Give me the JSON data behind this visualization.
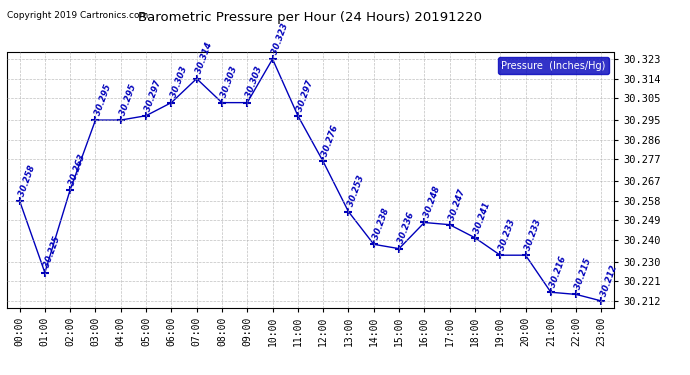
{
  "title": "Barometric Pressure per Hour (24 Hours) 20191220",
  "copyright": "Copyright 2019 Cartronics.com",
  "legend_label": "Pressure  (Inches/Hg)",
  "hours": [
    0,
    1,
    2,
    3,
    4,
    5,
    6,
    7,
    8,
    9,
    10,
    11,
    12,
    13,
    14,
    15,
    16,
    17,
    18,
    19,
    20,
    21,
    22,
    23
  ],
  "hour_labels": [
    "00:00",
    "01:00",
    "02:00",
    "03:00",
    "04:00",
    "05:00",
    "06:00",
    "07:00",
    "08:00",
    "09:00",
    "10:00",
    "11:00",
    "12:00",
    "13:00",
    "14:00",
    "15:00",
    "16:00",
    "17:00",
    "18:00",
    "19:00",
    "20:00",
    "21:00",
    "22:00",
    "23:00"
  ],
  "values": [
    30.258,
    30.225,
    30.263,
    30.295,
    30.295,
    30.297,
    30.303,
    30.314,
    30.303,
    30.303,
    30.323,
    30.297,
    30.276,
    30.253,
    30.238,
    30.236,
    30.248,
    30.247,
    30.241,
    30.233,
    30.233,
    30.216,
    30.215,
    30.212
  ],
  "line_color": "#0000bb",
  "marker_color": "#0000bb",
  "bg_color": "#ffffff",
  "grid_color": "#b0b0b0",
  "text_color": "#0000bb",
  "title_color": "#000000",
  "copyright_color": "#000000",
  "legend_bg": "#0000bb",
  "legend_text_color": "#ffffff",
  "ylim_min": 30.209,
  "ylim_max": 30.326,
  "yticks": [
    30.212,
    30.221,
    30.23,
    30.24,
    30.249,
    30.258,
    30.267,
    30.277,
    30.286,
    30.295,
    30.305,
    30.314,
    30.323
  ]
}
